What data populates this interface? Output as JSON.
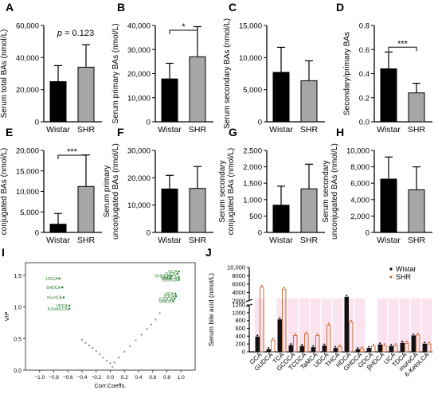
{
  "colors": {
    "wistar": "#000000",
    "shr": "#a6a6a6",
    "vip_points": "#2e7d32",
    "scatter_gray": "#999999",
    "j_wistar_bar": "#111111",
    "j_shr_bar": "#c8642a",
    "j_highlight": "#f9d6e8"
  },
  "chart_data": [
    {
      "panel": "A",
      "type": "bar",
      "categories": [
        "Wistar",
        "SHR"
      ],
      "values": [
        25000,
        34000
      ],
      "errors": [
        10000,
        14000
      ],
      "ylabel": "Serum total BAs (nmol/L)",
      "ylim": [
        0,
        60000
      ],
      "yticks": [
        "0",
        "20,000",
        "40,000",
        "60,000"
      ],
      "annotation": "p = 0.123"
    },
    {
      "panel": "B",
      "type": "bar",
      "categories": [
        "Wistar",
        "SHR"
      ],
      "values": [
        17800,
        27000
      ],
      "errors": [
        6500,
        12500
      ],
      "ylabel": "Serum primary BAs (nmol/L)",
      "ylim": [
        0,
        40000
      ],
      "yticks": [
        "0",
        "10,000",
        "20,000",
        "30,000",
        "40,000"
      ],
      "significance": "*"
    },
    {
      "panel": "C",
      "type": "bar",
      "categories": [
        "Wistar",
        "SHR"
      ],
      "values": [
        7700,
        6400
      ],
      "errors": [
        3900,
        3100
      ],
      "ylabel": "Serum secondary BAs (nmol/L)",
      "ylim": [
        0,
        15000
      ],
      "yticks": [
        "0",
        "5,000",
        "10,000",
        "15,000"
      ]
    },
    {
      "panel": "D",
      "type": "bar",
      "categories": [
        "Wistar",
        "SHR"
      ],
      "values": [
        0.44,
        0.24
      ],
      "errors": [
        0.14,
        0.08
      ],
      "ylabel": "Secondary/primary BAs",
      "ylim": [
        0,
        0.8
      ],
      "yticks": [
        "0.0",
        "0.2",
        "0.4",
        "0.6",
        "0.8"
      ],
      "significance": "***"
    },
    {
      "panel": "E",
      "type": "bar",
      "categories": [
        "Wistar",
        "SHR"
      ],
      "values": [
        2000,
        11200
      ],
      "errors": [
        2600,
        7700
      ],
      "ylabel": "Serum primary conjugated BAs (nmol/L)",
      "ylim": [
        0,
        20000
      ],
      "yticks": [
        "0",
        "5,000",
        "10,000",
        "15,000",
        "20,000"
      ],
      "significance": "***"
    },
    {
      "panel": "F",
      "type": "bar",
      "categories": [
        "Wistar",
        "SHR"
      ],
      "values": [
        15900,
        16100
      ],
      "errors": [
        5000,
        8000
      ],
      "ylabel": "Serum primary unconjugated BAs (nmol/L)",
      "ylim": [
        0,
        30000
      ],
      "yticks": [
        "0",
        "10,000",
        "20,000",
        "30,000"
      ]
    },
    {
      "panel": "G",
      "type": "bar",
      "categories": [
        "Wistar",
        "SHR"
      ],
      "values": [
        830,
        1330
      ],
      "errors": [
        580,
        750
      ],
      "ylabel": "Serum secondary conjugated BAs (nmol/L)",
      "ylim": [
        0,
        2500
      ],
      "yticks": [
        "0",
        "500",
        "1,000",
        "1,500",
        "2,000",
        "2,500"
      ]
    },
    {
      "panel": "H",
      "type": "bar",
      "categories": [
        "Wistar",
        "SHR"
      ],
      "values": [
        6500,
        5200
      ],
      "errors": [
        2700,
        2800
      ],
      "ylabel": "Serum secondary unconjugated BAs (nmol/L)",
      "ylim": [
        0,
        10000
      ],
      "yticks": [
        "0",
        "2,000",
        "4,000",
        "6,000",
        "8,000",
        "10,000"
      ]
    },
    {
      "panel": "I",
      "type": "scatter",
      "xlabel": "Corr.Coeffs.",
      "ylabel": "VIP",
      "xlim": [
        -1.2,
        1.2
      ],
      "ylim": [
        0,
        1.7
      ],
      "xticks": [
        "−1.0",
        "−0.8",
        "−0.6",
        "−0.4",
        "−0.2",
        "0.0",
        "0.2",
        "0.4",
        "0.6",
        "0.8",
        "1.0"
      ],
      "yticks": [
        "0.0",
        "0.5",
        "1.0",
        "1.5"
      ],
      "labeled_points": [
        {
          "label": "HDCA",
          "x": -0.72,
          "y": 1.45
        },
        {
          "label": "bHDCA",
          "x": -0.68,
          "y": 1.31
        },
        {
          "label": "muroCA",
          "x": -0.66,
          "y": 1.15
        },
        {
          "label": "UDCA",
          "x": -0.58,
          "y": 1.02
        },
        {
          "label": "6-KetoLCA",
          "x": -0.58,
          "y": 0.97
        },
        {
          "label": "GCA",
          "x": 0.97,
          "y": 1.56
        },
        {
          "label": "THCA",
          "x": 0.95,
          "y": 1.52
        },
        {
          "label": "GHDCA",
          "x": 0.86,
          "y": 1.49
        },
        {
          "label": "GUDCA",
          "x": 0.97,
          "y": 1.47
        },
        {
          "label": "TCA",
          "x": 0.85,
          "y": 1.45
        },
        {
          "label": "GCDCA",
          "x": 0.97,
          "y": 1.43
        },
        {
          "label": "UCA",
          "x": 0.92,
          "y": 1.21
        },
        {
          "label": "TDCA",
          "x": 0.93,
          "y": 1.17
        },
        {
          "label": "TCDCA",
          "x": 0.91,
          "y": 1.13
        },
        {
          "label": "TaMCA",
          "x": 0.89,
          "y": 1.09
        }
      ],
      "unlabeled_points": [
        {
          "x": -0.35,
          "y": 0.43
        },
        {
          "x": -0.3,
          "y": 0.39
        },
        {
          "x": -0.25,
          "y": 0.35
        },
        {
          "x": -0.2,
          "y": 0.3
        },
        {
          "x": -0.15,
          "y": 0.25
        },
        {
          "x": -0.1,
          "y": 0.2
        },
        {
          "x": -0.05,
          "y": 0.15
        },
        {
          "x": 0.0,
          "y": 0.11
        },
        {
          "x": 0.03,
          "y": 0.05
        },
        {
          "x": 0.06,
          "y": 0.12
        },
        {
          "x": 0.12,
          "y": 0.2
        },
        {
          "x": 0.2,
          "y": 0.29
        },
        {
          "x": 0.28,
          "y": 0.38
        },
        {
          "x": 0.36,
          "y": 0.47
        },
        {
          "x": 0.44,
          "y": 0.56
        },
        {
          "x": 0.52,
          "y": 0.65
        },
        {
          "x": 0.58,
          "y": 0.72
        },
        {
          "x": 0.64,
          "y": 0.8
        },
        {
          "x": 0.7,
          "y": 0.9
        },
        {
          "x": -0.4,
          "y": 0.48
        }
      ]
    },
    {
      "panel": "J",
      "type": "bar",
      "categories": [
        "GCA",
        "GUDCA",
        "TCA",
        "GCDCA",
        "TCDCA",
        "TaMCA",
        "UDCA",
        "THCA",
        "HDCA",
        "GHDCA",
        "GDCA",
        "βHDCA",
        "UCA",
        "TDCA",
        "muroCA",
        "6-KetoLCA"
      ],
      "ylabel": "Serum bile acid (nmol/L)",
      "yticks": [
        "0",
        "200",
        "400",
        "600",
        "800",
        "1000",
        "1200",
        "2000",
        "4000",
        "6000",
        "8000",
        "10,000"
      ],
      "legend_position": "top-right",
      "series": [
        {
          "name": "Wistar",
          "values": [
            380,
            60,
            820,
            160,
            140,
            110,
            150,
            90,
            2200,
            60,
            90,
            180,
            140,
            220,
            410,
            200
          ]
        },
        {
          "name": "SHR",
          "values": [
            4800,
            300,
            4300,
            420,
            460,
            420,
            680,
            130,
            760,
            80,
            150,
            160,
            160,
            220,
            430,
            200
          ]
        }
      ],
      "highlight_categories": [
        "GCA",
        "TCA",
        "GCDCA",
        "TCDCA",
        "TaMCA",
        "UDCA",
        "THCA",
        "HDCA",
        "GHDCA",
        "βHDCA",
        "UCA",
        "TDCA",
        "muroCA",
        "6-KetoLCA"
      ]
    }
  ]
}
